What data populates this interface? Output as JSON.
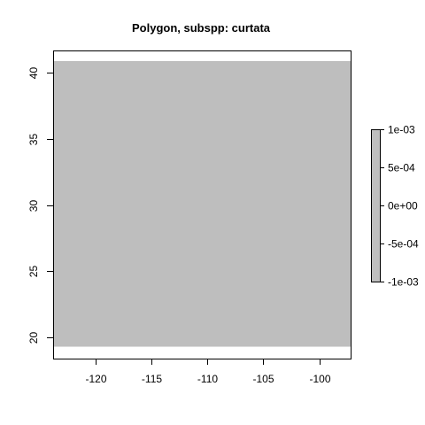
{
  "chart_data": {
    "type": "heatmap",
    "title": "Polygon, subspp: curtata",
    "xlabel": "",
    "ylabel": "",
    "xlim": [
      -123.8,
      -97.2
    ],
    "ylim": [
      18.4,
      41.7
    ],
    "raster_extent": {
      "x": [
        -123.8,
        -97.2
      ],
      "y": [
        19.3,
        40.9
      ]
    },
    "raster_value": 0,
    "raster_color": "#bebebe",
    "x_ticks": [
      -120,
      -115,
      -110,
      -105,
      -100
    ],
    "x_tick_labels": [
      "-120",
      "-115",
      "-110",
      "-105",
      "-100"
    ],
    "y_ticks": [
      20,
      25,
      30,
      35,
      40
    ],
    "y_tick_labels": [
      "20",
      "25",
      "30",
      "35",
      "40"
    ],
    "legend": {
      "placement": "right",
      "range": [
        -0.001,
        0.001
      ],
      "ticks": [
        0.001,
        0.0005,
        0,
        -0.0005,
        -0.001
      ],
      "tick_labels": [
        "1e-03",
        "5e-04",
        "0e+00",
        "-5e-04",
        "-1e-03"
      ],
      "fill_color": "#bebebe"
    },
    "grid": false
  }
}
